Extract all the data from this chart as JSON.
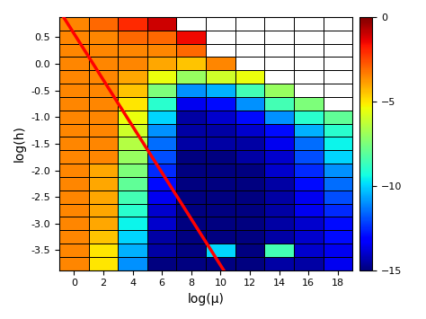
{
  "x_values": [
    0,
    2,
    4,
    6,
    8,
    10,
    12,
    14,
    16,
    18
  ],
  "y_values": [
    0.75,
    0.5,
    0.25,
    0.0,
    -0.25,
    -0.5,
    -0.75,
    -1.0,
    -1.25,
    -1.5,
    -1.75,
    -2.0,
    -2.25,
    -2.5,
    -2.75,
    -3.0,
    -3.25,
    -3.5,
    -3.75
  ],
  "cmap": "jet",
  "vmin": -15,
  "vmax": 0,
  "xlabel": "log(μ)",
  "ylabel": "log(h)",
  "colorbar_ticks": [
    0,
    -5,
    -10,
    -15
  ],
  "red_line_x": [
    -1,
    10.5
  ],
  "red_line_y": [
    1.0,
    -4.0
  ],
  "title": ""
}
